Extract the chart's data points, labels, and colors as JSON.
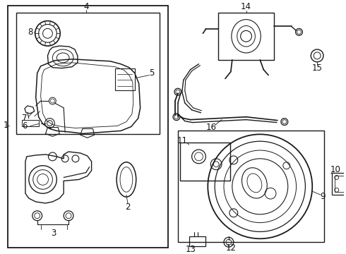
{
  "bg_color": "#ffffff",
  "line_color": "#1a1a1a",
  "label_color": "#111111",
  "font_size": 8.5,
  "figsize": [
    4.9,
    3.6
  ],
  "dpi": 100
}
